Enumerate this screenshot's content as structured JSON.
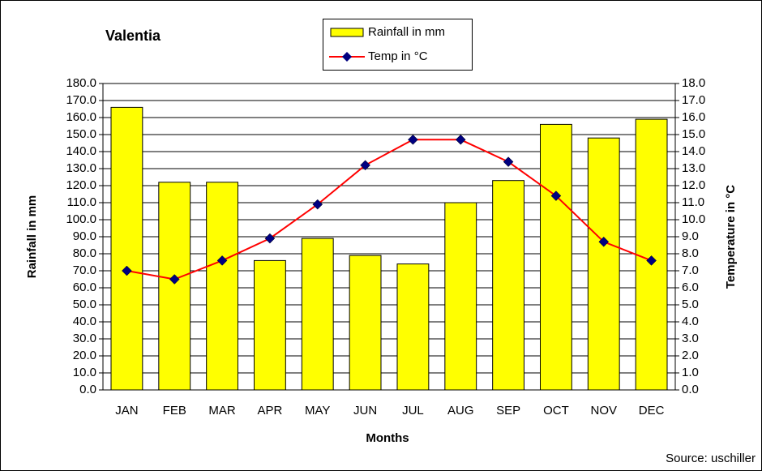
{
  "chart_data": {
    "type": "bar_line",
    "title": "Valentia",
    "x_label": "Months",
    "y_label": "Rainfall in mm",
    "y2_label": "Temperature in °C",
    "source": "Source: uschiller",
    "categories": [
      "JAN",
      "FEB",
      "MAR",
      "APR",
      "MAY",
      "JUN",
      "JUL",
      "AUG",
      "SEP",
      "OCT",
      "NOV",
      "DEC"
    ],
    "series": [
      {
        "name": "Rainfall in mm",
        "type": "bar",
        "color": "#ffff00",
        "values": [
          166,
          122,
          122,
          76,
          89,
          79,
          74,
          110,
          123,
          156,
          148,
          159
        ]
      },
      {
        "name": "Temp in °C",
        "type": "line",
        "axis": "y2",
        "color": "#ff0000",
        "marker_color": "#000080",
        "values": [
          7.0,
          6.5,
          7.6,
          8.9,
          10.9,
          13.2,
          14.7,
          14.7,
          13.4,
          11.4,
          8.7,
          7.6
        ]
      }
    ],
    "ylim": [
      0,
      180
    ],
    "yticks": [
      {
        "value": 0,
        "label": "0.0"
      },
      {
        "value": 10,
        "label": "10.0"
      },
      {
        "value": 20,
        "label": "20.0"
      },
      {
        "value": 30,
        "label": "30.0"
      },
      {
        "value": 40,
        "label": "40.0"
      },
      {
        "value": 50,
        "label": "50.0"
      },
      {
        "value": 60,
        "label": "60.0"
      },
      {
        "value": 70,
        "label": "70.0"
      },
      {
        "value": 80,
        "label": "80.0"
      },
      {
        "value": 90,
        "label": "90.0"
      },
      {
        "value": 100,
        "label": "100.0"
      },
      {
        "value": 110,
        "label": "110.0"
      },
      {
        "value": 120,
        "label": "120.0"
      },
      {
        "value": 130,
        "label": "130.0"
      },
      {
        "value": 140,
        "label": "140.0"
      },
      {
        "value": 150,
        "label": "150.0"
      },
      {
        "value": 160,
        "label": "160.0"
      },
      {
        "value": 170,
        "label": "170.0"
      },
      {
        "value": 180,
        "label": "180.0"
      }
    ],
    "y2lim": [
      0,
      18
    ],
    "y2ticks": [
      {
        "value": 0,
        "label": "0.0"
      },
      {
        "value": 1,
        "label": "1.0"
      },
      {
        "value": 2,
        "label": "2.0"
      },
      {
        "value": 3,
        "label": "3.0"
      },
      {
        "value": 4,
        "label": "4.0"
      },
      {
        "value": 5,
        "label": "5.0"
      },
      {
        "value": 6,
        "label": "6.0"
      },
      {
        "value": 7,
        "label": "7.0"
      },
      {
        "value": 8,
        "label": "8.0"
      },
      {
        "value": 9,
        "label": "9.0"
      },
      {
        "value": 10,
        "label": "10.0"
      },
      {
        "value": 11,
        "label": "11.0"
      },
      {
        "value": 12,
        "label": "12.0"
      },
      {
        "value": 13,
        "label": "13.0"
      },
      {
        "value": 14,
        "label": "14.0"
      },
      {
        "value": 15,
        "label": "15.0"
      },
      {
        "value": 16,
        "label": "16.0"
      },
      {
        "value": 17,
        "label": "17.0"
      },
      {
        "value": 18,
        "label": "18.0"
      }
    ],
    "grid": true
  }
}
